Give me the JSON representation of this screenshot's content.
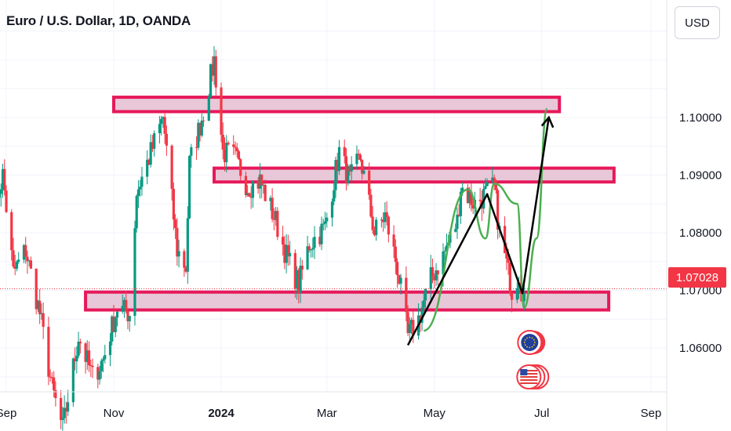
{
  "header": {
    "title": "Euro / U.S. Dollar, 1D, OANDA"
  },
  "currency_button": {
    "label": "USD"
  },
  "last_price": {
    "label": "1.07028",
    "value": 1.07028,
    "color": "#f23645"
  },
  "colors": {
    "up": "#089981",
    "down": "#f23645",
    "zone_fill": "#e8c8d8",
    "zone_stroke": "#e6195a",
    "projection": "#000000",
    "pattern": "#4caf50"
  },
  "chart_data": {
    "type": "candlestick",
    "symbol": "EURUSD",
    "interval": "1D",
    "source": "OANDA",
    "x_ticks": [
      {
        "label": "Sep",
        "date": "2023-09-01"
      },
      {
        "label": "Nov",
        "date": "2023-11-01"
      },
      {
        "label": "2024",
        "date": "2024-01-01",
        "bold": true
      },
      {
        "label": "Mar",
        "date": "2024-03-01"
      },
      {
        "label": "May",
        "date": "2024-05-01"
      },
      {
        "label": "Jul",
        "date": "2024-07-01"
      },
      {
        "label": "Sep",
        "date": "2024-09-01"
      }
    ],
    "y_ticks": [
      1.06,
      1.07,
      1.08,
      1.09,
      1.1
    ],
    "y_tick_labels": [
      "1.06000",
      "1.07000",
      "1.08000",
      "1.09000",
      "1.10000"
    ],
    "ylim": [
      1.0524,
      1.1152
    ],
    "xlim": [
      "2023-09-01",
      "2024-09-01"
    ],
    "grid": true,
    "legend": "none",
    "anchors": [
      [
        "2023-08-24",
        1.083
      ],
      [
        "2023-08-30",
        1.09
      ],
      [
        "2023-09-05",
        1.073
      ],
      [
        "2023-09-12",
        1.077
      ],
      [
        "2023-09-20",
        1.066
      ],
      [
        "2023-09-27",
        1.053
      ],
      [
        "2023-10-03",
        1.046
      ],
      [
        "2023-10-12",
        1.062
      ],
      [
        "2023-10-20",
        1.055
      ],
      [
        "2023-10-26",
        1.058
      ],
      [
        "2023-11-03",
        1.067
      ],
      [
        "2023-11-10",
        1.066
      ],
      [
        "2023-11-14",
        1.087
      ],
      [
        "2023-11-21",
        1.093
      ],
      [
        "2023-11-29",
        1.1
      ],
      [
        "2023-12-07",
        1.077
      ],
      [
        "2023-12-12",
        1.074
      ],
      [
        "2023-12-14",
        1.092
      ],
      [
        "2023-12-22",
        1.101
      ],
      [
        "2023-12-28",
        1.11
      ],
      [
        "2024-01-02",
        1.094
      ],
      [
        "2024-01-09",
        1.093
      ],
      [
        "2024-01-16",
        1.088
      ],
      [
        "2024-01-23",
        1.089
      ],
      [
        "2024-02-01",
        1.082
      ],
      [
        "2024-02-07",
        1.076
      ],
      [
        "2024-02-14",
        1.071
      ],
      [
        "2024-02-20",
        1.078
      ],
      [
        "2024-02-29",
        1.081
      ],
      [
        "2024-03-08",
        1.094
      ],
      [
        "2024-03-14",
        1.089
      ],
      [
        "2024-03-20",
        1.093
      ],
      [
        "2024-03-28",
        1.08
      ],
      [
        "2024-04-03",
        1.083
      ],
      [
        "2024-04-10",
        1.074
      ],
      [
        "2024-04-16",
        1.062
      ],
      [
        "2024-04-22",
        1.065
      ],
      [
        "2024-04-29",
        1.072
      ],
      [
        "2024-05-06",
        1.076
      ],
      [
        "2024-05-14",
        1.082
      ],
      [
        "2024-05-16",
        1.088
      ],
      [
        "2024-05-24",
        1.085
      ],
      [
        "2024-06-04",
        1.088
      ],
      [
        "2024-06-07",
        1.08
      ],
      [
        "2024-06-10",
        1.076
      ],
      [
        "2024-06-14",
        1.07
      ],
      [
        "2024-06-18",
        1.073
      ],
      [
        "2024-06-21",
        1.069
      ]
    ],
    "zones": [
      {
        "from": "2023-11-01",
        "to": "2024-07-11",
        "top": 1.1035,
        "bottom": 1.101
      },
      {
        "from": "2023-12-28",
        "to": "2024-08-11",
        "top": 1.0912,
        "bottom": 1.0888
      },
      {
        "from": "2023-10-16",
        "to": "2024-08-08",
        "top": 1.0697,
        "bottom": 1.0666
      }
    ],
    "projection_path": [
      [
        "2024-04-16",
        1.0605
      ],
      [
        "2024-05-31",
        1.0867
      ],
      [
        "2024-06-20",
        1.0695
      ],
      [
        "2024-07-05",
        1.1
      ]
    ],
    "pattern_path": [
      [
        "2024-04-25",
        1.063
      ],
      [
        "2024-05-20",
        1.0875
      ],
      [
        "2024-05-30",
        1.079
      ],
      [
        "2024-06-04",
        1.0885
      ],
      [
        "2024-06-17",
        1.085
      ],
      [
        "2024-06-21",
        1.067
      ],
      [
        "2024-06-28",
        1.079
      ],
      [
        "2024-07-04",
        1.1015
      ]
    ]
  }
}
